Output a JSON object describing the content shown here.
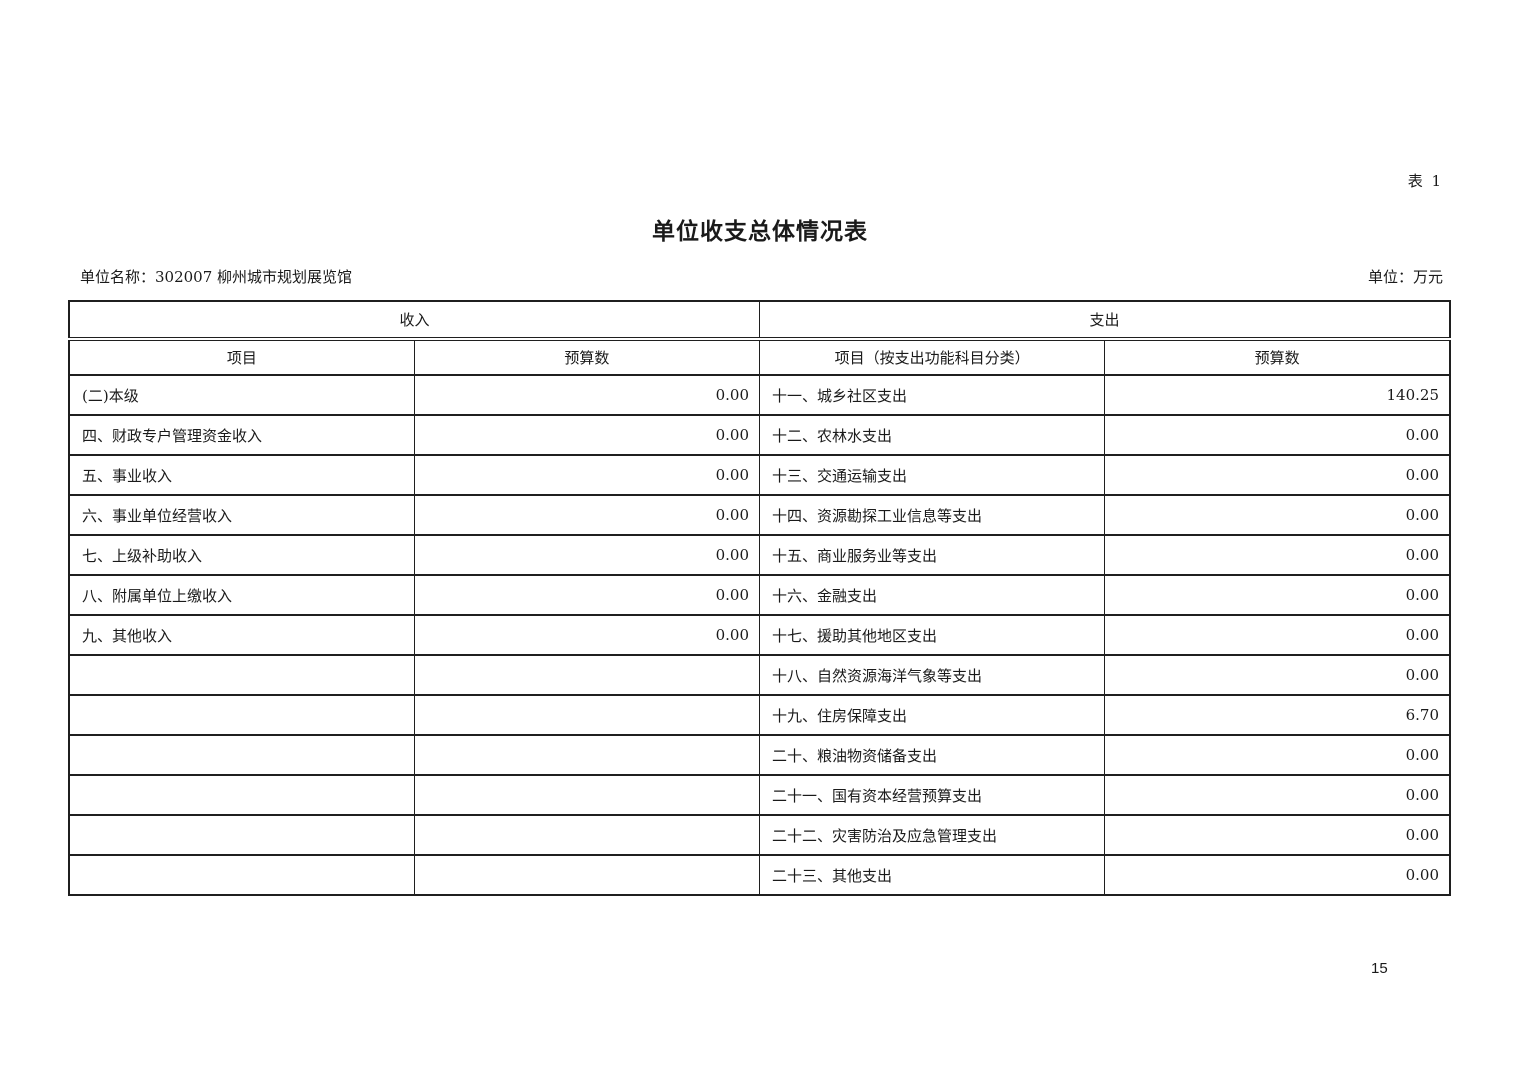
{
  "page": {
    "table_tag": "表 1",
    "title": "单位收支总体情况表",
    "unit_name": "单位名称：302007 柳州城市规划展览馆",
    "unit_of_measure": "单位：万元",
    "page_number": "15"
  },
  "table": {
    "income_section_header": "收入",
    "expense_section_header": "支出",
    "income_item_col": "项目",
    "income_budget_col": "预算数",
    "expense_item_col": "项目（按支出功能科目分类）",
    "expense_budget_col": "预算数",
    "rows": [
      {
        "income_item": "(二)本级",
        "income_value": "0.00",
        "expense_item": "十一、城乡社区支出",
        "expense_value": "140.25"
      },
      {
        "income_item": "四、财政专户管理资金收入",
        "income_value": "0.00",
        "expense_item": "十二、农林水支出",
        "expense_value": "0.00"
      },
      {
        "income_item": "五、事业收入",
        "income_value": "0.00",
        "expense_item": "十三、交通运输支出",
        "expense_value": "0.00"
      },
      {
        "income_item": "六、事业单位经营收入",
        "income_value": "0.00",
        "expense_item": "十四、资源勘探工业信息等支出",
        "expense_value": "0.00"
      },
      {
        "income_item": "七、上级补助收入",
        "income_value": "0.00",
        "expense_item": "十五、商业服务业等支出",
        "expense_value": "0.00"
      },
      {
        "income_item": "八、附属单位上缴收入",
        "income_value": "0.00",
        "expense_item": "十六、金融支出",
        "expense_value": "0.00"
      },
      {
        "income_item": "九、其他收入",
        "income_value": "0.00",
        "expense_item": "十七、援助其他地区支出",
        "expense_value": "0.00"
      },
      {
        "income_item": "",
        "income_value": "",
        "expense_item": "十八、自然资源海洋气象等支出",
        "expense_value": "0.00"
      },
      {
        "income_item": "",
        "income_value": "",
        "expense_item": "十九、住房保障支出",
        "expense_value": "6.70"
      },
      {
        "income_item": "",
        "income_value": "",
        "expense_item": "二十、粮油物资储备支出",
        "expense_value": "0.00"
      },
      {
        "income_item": "",
        "income_value": "",
        "expense_item": "二十一、国有资本经营预算支出",
        "expense_value": "0.00"
      },
      {
        "income_item": "",
        "income_value": "",
        "expense_item": "二十二、灾害防治及应急管理支出",
        "expense_value": "0.00"
      },
      {
        "income_item": "",
        "income_value": "",
        "expense_item": "二十三、其他支出",
        "expense_value": "0.00"
      }
    ]
  }
}
